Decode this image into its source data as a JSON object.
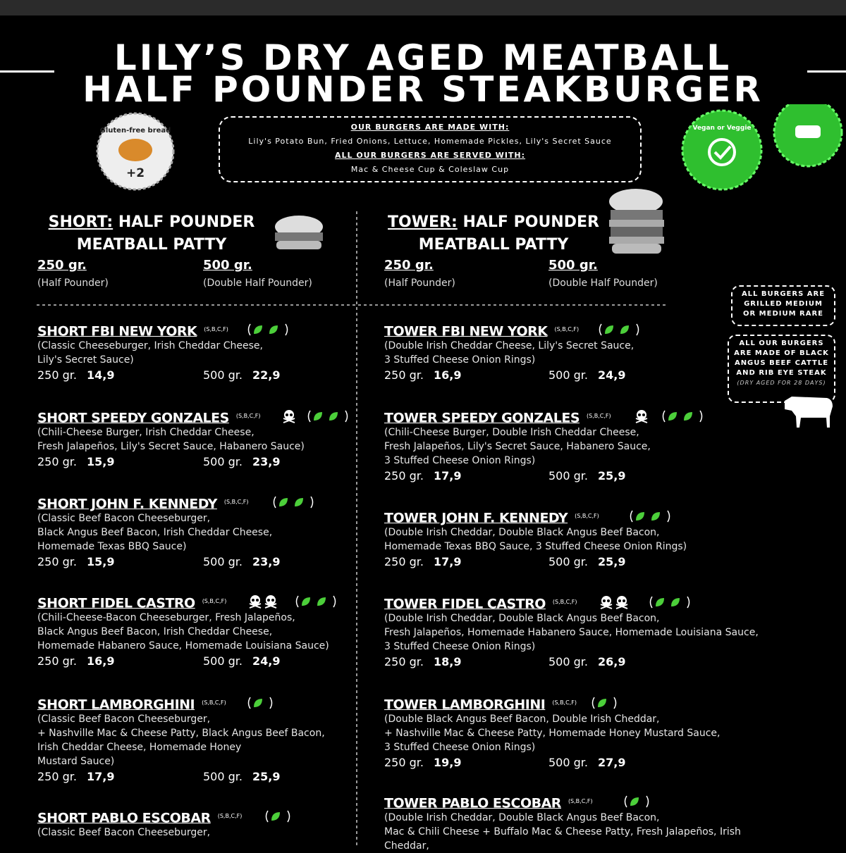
{
  "header": {
    "title_lines": [
      "LILY’S DRY AGED MEATBALL",
      "HALF POUNDER STEAKBURGER"
    ]
  },
  "badges": {
    "gluten_free": {
      "label": "Gluten-free bread",
      "price": "+2"
    },
    "vegan": {
      "label": "Vegan or Veggie"
    }
  },
  "info_box": {
    "made_with_title": "OUR BURGERS ARE MADE WITH:",
    "made_with": "Lily's Potato Bun, Fried Onions, Lettuce, Homemade Pickles, Lily's Secret Sauce",
    "served_with_title": "ALL OUR BURGERS ARE SERVED WITH:",
    "served_with": "Mac & Cheese Cup & Coleslaw Cup"
  },
  "notes": {
    "grill": "ALL BURGERS ARE GRILLED MEDIUM OR MEDIUM RARE",
    "beef": "ALL OUR BURGERS ARE MADE OF BLACK ANGUS BEEF CATTLE AND RIB EYE STEAK",
    "aged": "(DRY AGED FOR 28 DAYS)"
  },
  "columns": [
    {
      "label": "SHORT:",
      "title": "HALF POUNDER",
      "subtitle": "MEATBALL PATTY",
      "sizes": [
        {
          "weight": "250 gr.",
          "note": "(Half Pounder)"
        },
        {
          "weight": "500 gr.",
          "note": "(Double Half Pounder)"
        }
      ],
      "items": [
        {
          "name": "SHORT FBI NEW YORK",
          "tags": "(S,B,C,F)",
          "spice": 0,
          "veg_icons": 2,
          "description": [
            "(Classic Cheeseburger, Irish Cheddar Cheese,",
            "Lily's Secret Sauce)"
          ],
          "prices": [
            {
              "size": "250 gr.",
              "price": "14,9"
            },
            {
              "size": "500 gr.",
              "price": "22,9"
            }
          ]
        },
        {
          "name": "SHORT SPEEDY GONZALES",
          "tags": "(S,B,C,F)",
          "spice": 1,
          "veg_icons": 2,
          "description": [
            "(Chili-Cheese Burger, Irish Cheddar Cheese,",
            "Fresh Jalapeños, Lily's Secret Sauce, Habanero Sauce)"
          ],
          "prices": [
            {
              "size": "250 gr.",
              "price": "15,9"
            },
            {
              "size": "500 gr.",
              "price": "23,9"
            }
          ]
        },
        {
          "name": "SHORT JOHN F. KENNEDY",
          "tags": "(S,B,C,F)",
          "spice": 0,
          "veg_icons": 2,
          "description": [
            "(Classic Beef Bacon Cheeseburger,",
            "Black Angus Beef Bacon, Irish Cheddar Cheese,",
            "Homemade Texas BBQ Sauce)"
          ],
          "prices": [
            {
              "size": "250 gr.",
              "price": "15,9"
            },
            {
              "size": "500 gr.",
              "price": "23,9"
            }
          ]
        },
        {
          "name": "SHORT FIDEL CASTRO",
          "tags": "(S,B,C,F)",
          "spice": 2,
          "veg_icons": 2,
          "description": [
            "(Chili-Cheese-Bacon Cheeseburger, Fresh Jalapeños,",
            "Black Angus Beef Bacon, Irish Cheddar Cheese,",
            "Homemade Habanero Sauce, Homemade Louisiana Sauce)"
          ],
          "prices": [
            {
              "size": "250 gr.",
              "price": "16,9"
            },
            {
              "size": "500 gr.",
              "price": "24,9"
            }
          ]
        },
        {
          "name": "SHORT LAMBORGHINI",
          "tags": "(S,B,C,F)",
          "spice": 0,
          "veg_icons": 1,
          "description": [
            "(Classic Beef Bacon Cheeseburger,",
            "+ Nashville Mac & Cheese Patty, Black Angus Beef Bacon,",
            "Irish Cheddar Cheese, Homemade Honey",
            "Mustard Sauce)"
          ],
          "prices": [
            {
              "size": "250 gr.",
              "price": "17,9"
            },
            {
              "size": "500 gr.",
              "price": "25,9"
            }
          ]
        },
        {
          "name": "SHORT PABLO ESCOBAR",
          "tags": "(S,B,C,F)",
          "spice": 0,
          "veg_icons": 1,
          "description": [
            "(Classic Beef Bacon Cheeseburger,"
          ],
          "prices": []
        }
      ]
    },
    {
      "label": "TOWER:",
      "title": "HALF POUNDER",
      "subtitle": "MEATBALL PATTY",
      "sizes": [
        {
          "weight": "250 gr.",
          "note": "(Half Pounder)"
        },
        {
          "weight": "500 gr.",
          "note": "(Double Half Pounder)"
        }
      ],
      "items": [
        {
          "name": "TOWER FBI NEW YORK",
          "tags": "(S,B,C,F)",
          "spice": 0,
          "veg_icons": 2,
          "description": [
            "(Double Irish Cheddar Cheese, Lily's Secret Sauce,",
            "3 Stuffed Cheese Onion Rings)"
          ],
          "prices": [
            {
              "size": "250 gr.",
              "price": "16,9"
            },
            {
              "size": "500 gr.",
              "price": "24,9"
            }
          ]
        },
        {
          "name": "TOWER SPEEDY GONZALES",
          "tags": "(S,B,C,F)",
          "spice": 1,
          "veg_icons": 2,
          "description": [
            "(Chili-Cheese Burger, Double Irish Cheddar Cheese,",
            "Fresh Jalapeños,  Lily's Secret Sauce, Habanero Sauce,",
            "3 Stuffed Cheese Onion Rings)"
          ],
          "prices": [
            {
              "size": "250 gr.",
              "price": "17,9"
            },
            {
              "size": "500 gr.",
              "price": "25,9"
            }
          ]
        },
        {
          "name": "TOWER JOHN F. KENNEDY",
          "tags": "(S,B,C,F)",
          "spice": 0,
          "veg_icons": 2,
          "description": [
            "(Double Irish Cheddar, Double Black Angus Beef Bacon,",
            "Homemade Texas BBQ Sauce, 3 Stuffed Cheese Onion Rings)"
          ],
          "prices": [
            {
              "size": "250 gr.",
              "price": "17,9"
            },
            {
              "size": "500 gr.",
              "price": "25,9"
            }
          ]
        },
        {
          "name": "TOWER FIDEL CASTRO",
          "tags": "(S,B,C,F)",
          "spice": 2,
          "veg_icons": 2,
          "description": [
            "(Double Irish Cheddar, Double Black Angus Beef Bacon,",
            "Fresh Jalapeños, Homemade Habanero Sauce, Homemade Louisiana Sauce,",
            "3 Stuffed Cheese Onion Rings)"
          ],
          "prices": [
            {
              "size": "250 gr.",
              "price": "18,9"
            },
            {
              "size": "500 gr.",
              "price": "26,9"
            }
          ]
        },
        {
          "name": "TOWER LAMBORGHINI",
          "tags": "(S,B,C,F)",
          "spice": 0,
          "veg_icons": 1,
          "description": [
            "(Double Black Angus Beef Bacon, Double Irish Cheddar,",
            "+ Nashville Mac & Cheese Patty, Homemade Honey Mustard Sauce,",
            "3 Stuffed Cheese Onion Rings)"
          ],
          "prices": [
            {
              "size": "250 gr.",
              "price": "19,9"
            },
            {
              "size": "500 gr.",
              "price": "27,9"
            }
          ]
        },
        {
          "name": "TOWER PABLO ESCOBAR",
          "tags": "(S,B,C,F)",
          "spice": 0,
          "veg_icons": 1,
          "description": [
            "(Double Irish Cheddar, Double Black Angus Beef Bacon,",
            "Mac & Chili Cheese + Buffalo Mac & Cheese Patty, Fresh Jalapeños, Irish Cheddar,"
          ],
          "prices": []
        }
      ]
    }
  ]
}
